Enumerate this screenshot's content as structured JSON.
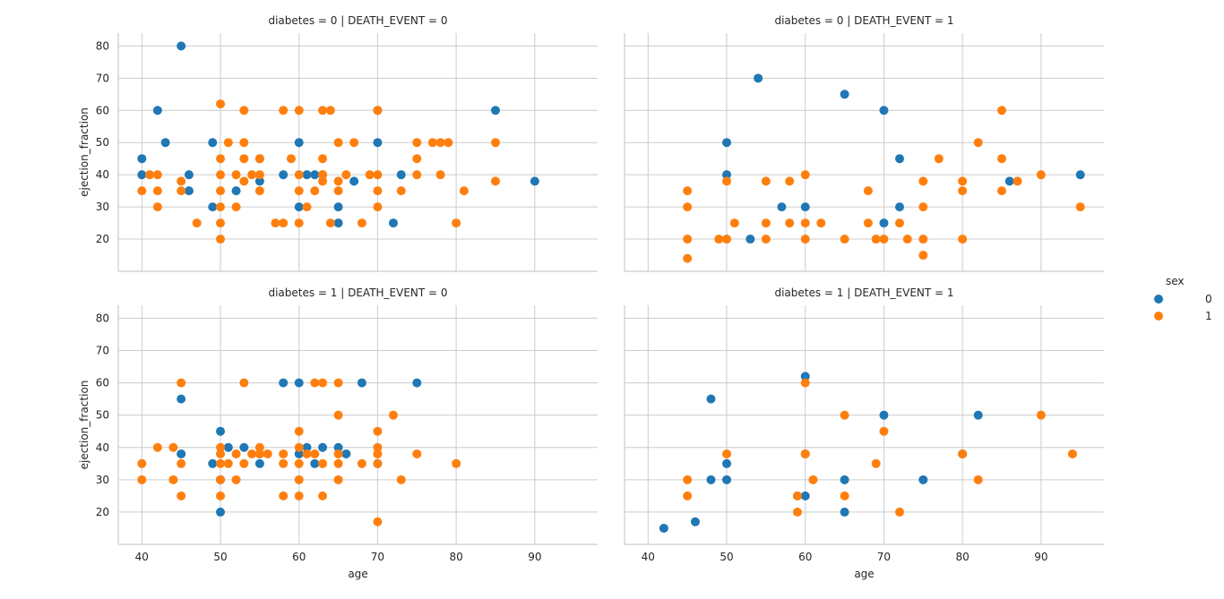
{
  "legend": {
    "title": "sex",
    "entries": [
      {
        "label": "0",
        "color": "#1f77b4"
      },
      {
        "label": "1",
        "color": "#ff7f0e"
      }
    ]
  },
  "chart_data": {
    "type": "scatter",
    "xlabel": "age",
    "ylabel": "ejection_fraction",
    "xlim": [
      37,
      98
    ],
    "ylim": [
      10,
      84
    ],
    "xticks": [
      40,
      50,
      60,
      70,
      80,
      90
    ],
    "yticks": [
      20,
      30,
      40,
      50,
      60,
      70,
      80
    ],
    "grid": true,
    "legend_position": "right",
    "hue": "sex",
    "panels": [
      {
        "title": "diabetes = 0 | DEATH_EVENT = 0",
        "series": [
          {
            "name": "0",
            "points": [
              [
                45,
                80
              ],
              [
                42,
                60
              ],
              [
                43,
                50
              ],
              [
                40,
                45
              ],
              [
                40,
                40
              ],
              [
                46,
                40
              ],
              [
                46,
                35
              ],
              [
                49,
                50
              ],
              [
                49,
                30
              ],
              [
                52,
                35
              ],
              [
                55,
                45
              ],
              [
                55,
                38
              ],
              [
                58,
                40
              ],
              [
                60,
                50
              ],
              [
                60,
                30
              ],
              [
                61,
                40
              ],
              [
                62,
                40
              ],
              [
                63,
                40
              ],
              [
                65,
                30
              ],
              [
                65,
                25
              ],
              [
                67,
                38
              ],
              [
                70,
                50
              ],
              [
                70,
                60
              ],
              [
                72,
                25
              ],
              [
                73,
                40
              ],
              [
                85,
                60
              ],
              [
                90,
                38
              ]
            ]
          },
          {
            "name": "1",
            "points": [
              [
                40,
                35
              ],
              [
                41,
                40
              ],
              [
                42,
                40
              ],
              [
                42,
                35
              ],
              [
                42,
                30
              ],
              [
                45,
                38
              ],
              [
                45,
                35
              ],
              [
                47,
                25
              ],
              [
                50,
                62
              ],
              [
                50,
                45
              ],
              [
                50,
                40
              ],
              [
                50,
                35
              ],
              [
                50,
                30
              ],
              [
                50,
                25
              ],
              [
                50,
                20
              ],
              [
                51,
                50
              ],
              [
                52,
                40
              ],
              [
                52,
                30
              ],
              [
                53,
                60
              ],
              [
                53,
                50
              ],
              [
                53,
                45
              ],
              [
                53,
                38
              ],
              [
                54,
                40
              ],
              [
                55,
                35
              ],
              [
                55,
                40
              ],
              [
                55,
                45
              ],
              [
                57,
                25
              ],
              [
                58,
                60
              ],
              [
                58,
                25
              ],
              [
                59,
                45
              ],
              [
                60,
                60
              ],
              [
                60,
                40
              ],
              [
                60,
                35
              ],
              [
                60,
                25
              ],
              [
                61,
                30
              ],
              [
                62,
                35
              ],
              [
                63,
                60
              ],
              [
                63,
                45
              ],
              [
                63,
                40
              ],
              [
                63,
                38
              ],
              [
                64,
                60
              ],
              [
                64,
                25
              ],
              [
                65,
                50
              ],
              [
                65,
                35
              ],
              [
                65,
                38
              ],
              [
                66,
                40
              ],
              [
                67,
                50
              ],
              [
                68,
                25
              ],
              [
                69,
                40
              ],
              [
                70,
                60
              ],
              [
                70,
                40
              ],
              [
                70,
                35
              ],
              [
                70,
                30
              ],
              [
                73,
                35
              ],
              [
                75,
                50
              ],
              [
                75,
                45
              ],
              [
                75,
                40
              ],
              [
                77,
                50
              ],
              [
                78,
                50
              ],
              [
                78,
                40
              ],
              [
                79,
                50
              ],
              [
                80,
                25
              ],
              [
                81,
                35
              ],
              [
                85,
                50
              ],
              [
                85,
                38
              ]
            ]
          }
        ]
      },
      {
        "title": "diabetes = 0 | DEATH_EVENT = 1",
        "series": [
          {
            "name": "0",
            "points": [
              [
                54,
                70
              ],
              [
                65,
                65
              ],
              [
                70,
                60
              ],
              [
                50,
                50
              ],
              [
                50,
                40
              ],
              [
                72,
                45
              ],
              [
                72,
                30
              ],
              [
                53,
                20
              ],
              [
                57,
                30
              ],
              [
                60,
                30
              ],
              [
                70,
                25
              ],
              [
                86,
                38
              ],
              [
                95,
                40
              ]
            ]
          },
          {
            "name": "1",
            "points": [
              [
                45,
                35
              ],
              [
                45,
                30
              ],
              [
                45,
                20
              ],
              [
                45,
                14
              ],
              [
                49,
                20
              ],
              [
                50,
                20
              ],
              [
                50,
                38
              ],
              [
                51,
                25
              ],
              [
                55,
                38
              ],
              [
                55,
                25
              ],
              [
                55,
                20
              ],
              [
                58,
                38
              ],
              [
                58,
                25
              ],
              [
                60,
                40
              ],
              [
                60,
                25
              ],
              [
                60,
                20
              ],
              [
                62,
                25
              ],
              [
                65,
                20
              ],
              [
                68,
                35
              ],
              [
                68,
                25
              ],
              [
                69,
                20
              ],
              [
                70,
                20
              ],
              [
                72,
                25
              ],
              [
                73,
                20
              ],
              [
                75,
                38
              ],
              [
                75,
                30
              ],
              [
                75,
                20
              ],
              [
                75,
                15
              ],
              [
                77,
                45
              ],
              [
                80,
                38
              ],
              [
                80,
                35
              ],
              [
                80,
                20
              ],
              [
                82,
                50
              ],
              [
                85,
                60
              ],
              [
                85,
                45
              ],
              [
                85,
                35
              ],
              [
                87,
                38
              ],
              [
                90,
                40
              ],
              [
                95,
                30
              ]
            ]
          }
        ]
      },
      {
        "title": "diabetes = 1 | DEATH_EVENT = 0",
        "series": [
          {
            "name": "0",
            "points": [
              [
                45,
                55
              ],
              [
                45,
                38
              ],
              [
                49,
                35
              ],
              [
                50,
                45
              ],
              [
                50,
                30
              ],
              [
                50,
                20
              ],
              [
                51,
                40
              ],
              [
                53,
                40
              ],
              [
                55,
                38
              ],
              [
                55,
                35
              ],
              [
                58,
                60
              ],
              [
                60,
                60
              ],
              [
                60,
                38
              ],
              [
                61,
                40
              ],
              [
                62,
                35
              ],
              [
                63,
                40
              ],
              [
                65,
                40
              ],
              [
                66,
                38
              ],
              [
                68,
                60
              ],
              [
                70,
                35
              ],
              [
                75,
                60
              ]
            ]
          },
          {
            "name": "1",
            "points": [
              [
                40,
                35
              ],
              [
                40,
                30
              ],
              [
                42,
                40
              ],
              [
                44,
                40
              ],
              [
                44,
                30
              ],
              [
                45,
                60
              ],
              [
                45,
                35
              ],
              [
                45,
                25
              ],
              [
                50,
                40
              ],
              [
                50,
                38
              ],
              [
                50,
                35
              ],
              [
                50,
                30
              ],
              [
                50,
                25
              ],
              [
                51,
                35
              ],
              [
                52,
                38
              ],
              [
                52,
                30
              ],
              [
                53,
                60
              ],
              [
                53,
                35
              ],
              [
                54,
                38
              ],
              [
                55,
                40
              ],
              [
                55,
                38
              ],
              [
                56,
                38
              ],
              [
                58,
                38
              ],
              [
                58,
                35
              ],
              [
                58,
                25
              ],
              [
                60,
                45
              ],
              [
                60,
                40
              ],
              [
                60,
                35
              ],
              [
                60,
                30
              ],
              [
                60,
                25
              ],
              [
                61,
                38
              ],
              [
                62,
                60
              ],
              [
                62,
                38
              ],
              [
                63,
                60
              ],
              [
                63,
                35
              ],
              [
                63,
                25
              ],
              [
                65,
                60
              ],
              [
                65,
                50
              ],
              [
                65,
                38
              ],
              [
                65,
                35
              ],
              [
                65,
                30
              ],
              [
                68,
                35
              ],
              [
                70,
                45
              ],
              [
                70,
                40
              ],
              [
                70,
                38
              ],
              [
                70,
                35
              ],
              [
                70,
                17
              ],
              [
                72,
                50
              ],
              [
                73,
                30
              ],
              [
                75,
                38
              ],
              [
                80,
                35
              ]
            ]
          }
        ]
      },
      {
        "title": "diabetes = 1 | DEATH_EVENT = 1",
        "series": [
          {
            "name": "0",
            "points": [
              [
                42,
                15
              ],
              [
                46,
                17
              ],
              [
                48,
                55
              ],
              [
                48,
                30
              ],
              [
                50,
                35
              ],
              [
                50,
                30
              ],
              [
                59,
                25
              ],
              [
                60,
                62
              ],
              [
                60,
                38
              ],
              [
                60,
                25
              ],
              [
                65,
                30
              ],
              [
                65,
                20
              ],
              [
                70,
                50
              ],
              [
                75,
                30
              ],
              [
                80,
                38
              ],
              [
                82,
                50
              ]
            ]
          },
          {
            "name": "1",
            "points": [
              [
                45,
                30
              ],
              [
                45,
                25
              ],
              [
                50,
                38
              ],
              [
                59,
                25
              ],
              [
                59,
                20
              ],
              [
                60,
                60
              ],
              [
                60,
                38
              ],
              [
                61,
                30
              ],
              [
                65,
                50
              ],
              [
                65,
                25
              ],
              [
                69,
                35
              ],
              [
                70,
                45
              ],
              [
                72,
                20
              ],
              [
                80,
                38
              ],
              [
                82,
                30
              ],
              [
                90,
                50
              ],
              [
                94,
                38
              ]
            ]
          }
        ]
      }
    ]
  }
}
